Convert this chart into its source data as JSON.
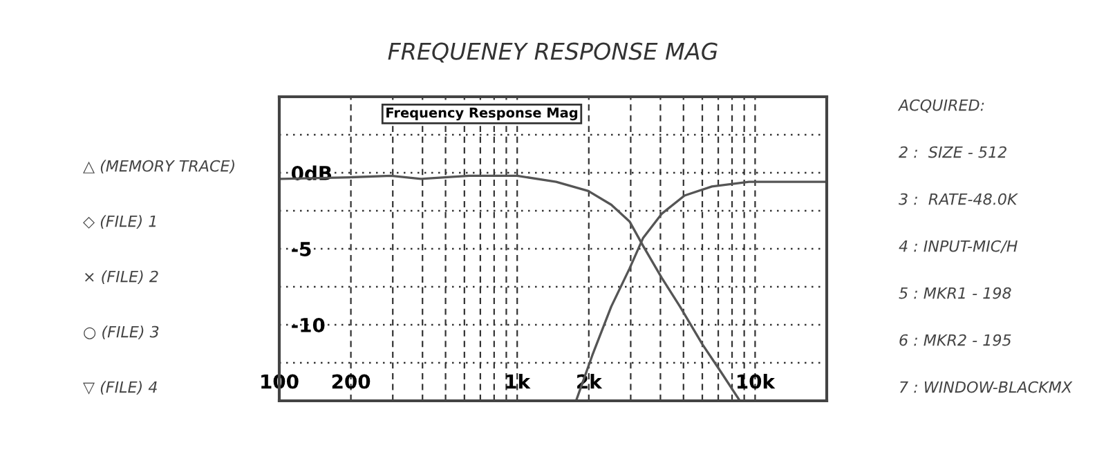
{
  "chart_data": {
    "type": "line",
    "title": "FREQUENEY RESPONSE MAG",
    "annotations": [
      "Frequency Response Mag",
      "△ (MEMORY TRACE)",
      "◇ (FILE) 1",
      "× (FILE) 2",
      "○ (FILE) 3",
      "▽ (FILE) 4",
      "ACQUIRED:",
      "2 :  SIZE - 512",
      "3 :  RATE-48.0K",
      "4 : INPUT-MIC/H",
      "5 : MKR1 - 198",
      "6 : MKR2 - 195",
      "7 : WINDOW-BLACKMX"
    ],
    "log": "x",
    "grid": true,
    "marker": "none",
    "line_style": "solid",
    "xlim": [
      100,
      20000
    ],
    "ylim": [
      -15,
      5
    ],
    "xticks": [
      100,
      {
        "value": 200,
        "label": "200"
      },
      {
        "value": 300,
        "label": null
      },
      {
        "value": 400,
        "label": null
      },
      {
        "value": 500,
        "label": null
      },
      {
        "value": 600,
        "label": null
      },
      {
        "value": 700,
        "label": null
      },
      {
        "value": 800,
        "label": null
      },
      {
        "value": 900,
        "label": null
      },
      {
        "value": 1000,
        "label": "1k"
      },
      {
        "value": 2000,
        "label": "2k"
      },
      {
        "value": 3000,
        "label": null
      },
      {
        "value": 4000,
        "label": null
      },
      {
        "value": 5000,
        "label": null
      },
      {
        "value": 6000,
        "label": null
      },
      {
        "value": 7000,
        "label": null
      },
      {
        "value": 8000,
        "label": null
      },
      {
        "value": 9000,
        "label": null
      },
      {
        "value": 10000,
        "label": "10k"
      }
    ],
    "yticks": [
      {
        "value": 2.5,
        "label": null
      },
      {
        "value": 0,
        "label": "0dB"
      },
      {
        "value": -2.5,
        "label": null
      },
      -5,
      {
        "value": -7.5,
        "label": null
      },
      -10,
      {
        "value": -12.5,
        "label": null
      }
    ],
    "series": [
      {
        "color": "#555555",
        "x": [
          102,
          198,
          295,
          394,
          627,
          1000,
          1458,
          1990,
          2485,
          2966,
          3380,
          4048,
          4833,
          6013,
          7184,
          8627
        ],
        "values": [
          -0.4,
          -0.3,
          -0.2,
          -0.4,
          -0.2,
          -0.2,
          -0.6,
          -1.2,
          -2.1,
          -3.2,
          -4.8,
          -6.9,
          -8.8,
          -11.3,
          -13.1,
          -15
        ]
      },
      {
        "color": "#555555",
        "x": [
          1768,
          2081,
          2485,
          2966,
          3380,
          4048,
          5050,
          6580,
          9420,
          20000
        ],
        "values": [
          -15,
          -11.9,
          -8.8,
          -6.3,
          -4.3,
          -2.7,
          -1.5,
          -0.9,
          -0.6,
          -0.6
        ]
      }
    ]
  }
}
